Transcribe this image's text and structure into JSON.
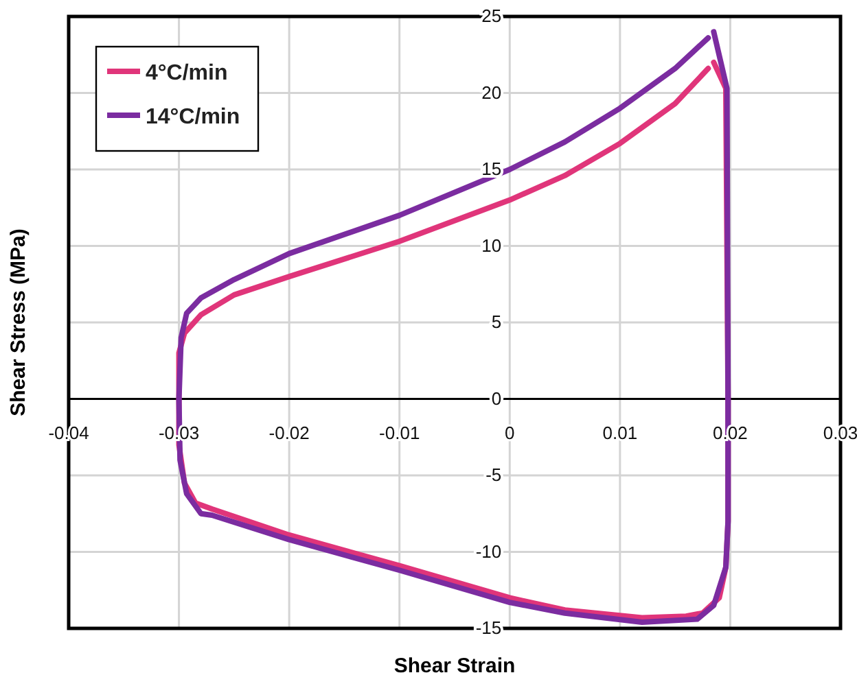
{
  "chart_data": {
    "type": "line",
    "xlabel": "Shear Strain",
    "ylabel": "Shear Stress (MPa)",
    "xlim": [
      -0.04,
      0.03
    ],
    "xticks": [
      -0.04,
      -0.03,
      -0.02,
      -0.01,
      0,
      0.01,
      0.02,
      0.03
    ],
    "ylim": [
      -15,
      25
    ],
    "yticks": [
      -15,
      -10,
      -5,
      0,
      5,
      10,
      15,
      20,
      25
    ],
    "grid": true,
    "legend": "top left",
    "marker": "none",
    "line_style": "solid",
    "series": [
      {
        "name": "4°C/min",
        "color": "#e0357a",
        "x": [
          0.0185,
          0.0196,
          0.0198,
          0.0198,
          0.0196,
          0.019,
          0.0175,
          0.016,
          0.012,
          0.005,
          0,
          -0.01,
          -0.02,
          -0.027,
          -0.0285,
          -0.0295,
          -0.03,
          -0.03,
          -0.03,
          -0.0295,
          -0.028,
          -0.025,
          -0.02,
          -0.01,
          0,
          0.005,
          0.01,
          0.015,
          0.018
        ],
        "values": [
          22,
          20.3,
          0,
          -8,
          -11,
          -13,
          -14,
          -14.2,
          -14.3,
          -13.8,
          -13,
          -10.9,
          -8.9,
          -7.2,
          -6.8,
          -5.5,
          -3,
          0,
          3,
          4.3,
          5.5,
          6.8,
          8,
          10.3,
          13,
          14.6,
          16.7,
          19.3,
          21.6
        ]
      },
      {
        "name": "14°C/min",
        "color": "#7b2ca0",
        "x": [
          0.0185,
          0.0197,
          0.0198,
          0.0198,
          0.0196,
          0.0185,
          0.017,
          0.012,
          0.005,
          0,
          -0.01,
          -0.02,
          -0.027,
          -0.028,
          -0.0293,
          -0.0299,
          -0.03,
          -0.0298,
          -0.0293,
          -0.028,
          -0.025,
          -0.02,
          -0.01,
          0,
          0.005,
          0.01,
          0.015,
          0.018
        ],
        "values": [
          24,
          20.3,
          0,
          -8,
          -11,
          -13.5,
          -14.4,
          -14.6,
          -14,
          -13.3,
          -11.2,
          -9.2,
          -7.6,
          -7.5,
          -6.2,
          -4,
          0,
          4,
          5.6,
          6.6,
          7.8,
          9.5,
          12,
          15,
          16.8,
          19,
          21.6,
          23.6
        ]
      }
    ]
  }
}
